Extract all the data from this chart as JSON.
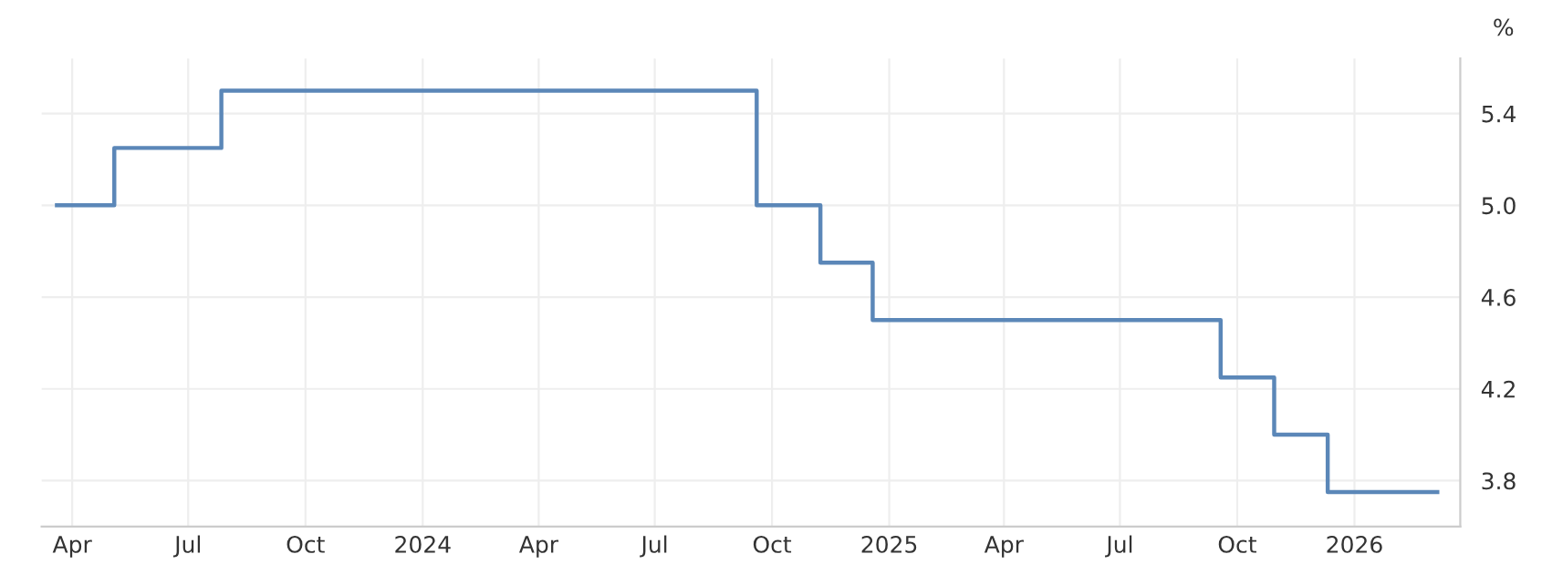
{
  "chart_data": {
    "type": "step",
    "ylabel": "%",
    "x": [
      "2023-03-20",
      "2023-05-04",
      "2023-07-27",
      "2024-09-19",
      "2024-11-08",
      "2024-12-19",
      "2025-09-18",
      "2025-10-30",
      "2025-12-11",
      "2026-03-07"
    ],
    "series": [
      {
        "color": "#5b87b8",
        "values": [
          5.0,
          5.25,
          5.5,
          5.0,
          4.75,
          4.5,
          4.25,
          4.0,
          3.75,
          3.75
        ]
      }
    ],
    "xlim": [
      "2023-03-08",
      "2026-03-25"
    ],
    "xticks": [
      {
        "value": "2023-04-01",
        "label": "Apr"
      },
      {
        "value": "2023-07-01",
        "label": "Jul"
      },
      {
        "value": "2023-10-01",
        "label": "Oct"
      },
      {
        "value": "2024-01-01",
        "label": "2024"
      },
      {
        "value": "2024-04-01",
        "label": "Apr"
      },
      {
        "value": "2024-07-01",
        "label": "Jul"
      },
      {
        "value": "2024-10-01",
        "label": "Oct"
      },
      {
        "value": "2025-01-01",
        "label": "2025"
      },
      {
        "value": "2025-04-01",
        "label": "Apr"
      },
      {
        "value": "2025-07-01",
        "label": "Jul"
      },
      {
        "value": "2025-10-01",
        "label": "Oct"
      },
      {
        "value": "2026-01-01",
        "label": "2026"
      }
    ],
    "ylim": [
      3.6,
      5.64
    ],
    "yticks": [
      {
        "value": 3.8,
        "label": "3.8"
      },
      {
        "value": 4.2,
        "label": "4.2"
      },
      {
        "value": 4.6,
        "label": "4.6"
      },
      {
        "value": 5.0,
        "label": "5.0"
      },
      {
        "value": 5.4,
        "label": "5.4"
      }
    ],
    "grid": true,
    "line_style": "solid",
    "marker": "none"
  }
}
